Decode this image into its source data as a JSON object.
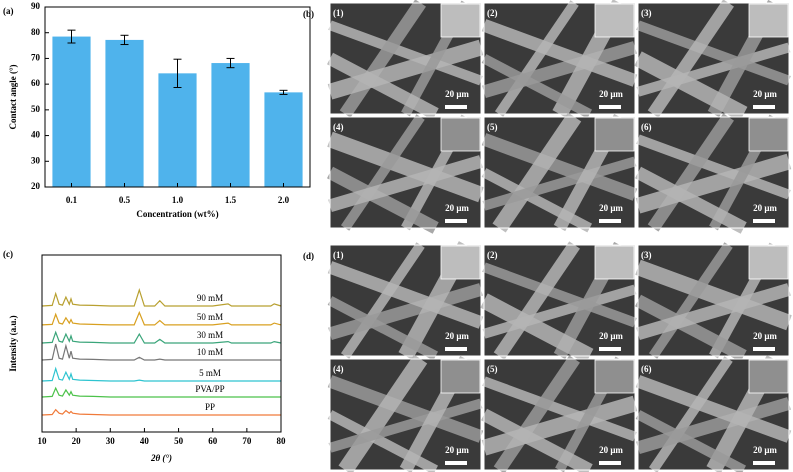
{
  "chart_data": [
    {
      "type": "bar",
      "panel_label": "(a)",
      "xlabel": "Concentration (wt%)",
      "ylabel": "Contact angle (°)",
      "categories": [
        "0.1",
        "0.5",
        "1.0",
        "1.5",
        "2.0"
      ],
      "values": [
        78.5,
        77.2,
        64.2,
        68.2,
        56.8
      ],
      "errors": [
        2.5,
        1.8,
        5.5,
        1.8,
        0.8
      ],
      "color": "#4fb3ec",
      "ylim": [
        20,
        90
      ],
      "yticks": [
        20,
        30,
        40,
        50,
        60,
        70,
        80,
        90
      ]
    },
    {
      "type": "line",
      "panel_label": "(c)",
      "xlabel": "2θ (°)",
      "ylabel": "Intensity (a.u.)",
      "x": [
        10,
        13,
        14,
        15,
        16,
        17,
        18,
        18.5,
        19,
        21,
        25,
        30,
        37,
        38.5,
        40,
        43,
        44.5,
        46,
        60,
        64.5,
        65.5,
        77,
        78,
        80
      ],
      "xlim": [
        10,
        80
      ],
      "xticks": [
        10,
        20,
        30,
        40,
        50,
        60,
        70,
        80
      ],
      "ylim": [
        0,
        100
      ],
      "series": [
        {
          "name": "PP",
          "color": "#f07a3a",
          "values": [
            9.6,
            9.9,
            12.6,
            10.6,
            10.1,
            12.1,
            10.6,
            11.6,
            10.6,
            10.1,
            9.9,
            9.6,
            9.6,
            9.6,
            9.6,
            9.6,
            9.6,
            9.6,
            9.6,
            9.6,
            9.6,
            9.6,
            9.6,
            9.6
          ]
        },
        {
          "name": "PVA/PP",
          "color": "#4cc24a",
          "values": [
            19.8,
            20.1,
            24.8,
            20.8,
            20.3,
            23.8,
            20.8,
            22.8,
            20.8,
            20.3,
            20.1,
            19.8,
            19.8,
            19.8,
            19.8,
            19.8,
            19.8,
            19.8,
            19.8,
            19.8,
            19.8,
            19.8,
            19.8,
            19.8
          ]
        },
        {
          "name": "5 mM",
          "color": "#2ec4d0",
          "values": [
            28.8,
            29.1,
            35.8,
            29.8,
            29.3,
            33.8,
            29.8,
            32.8,
            29.8,
            29.3,
            29.1,
            28.8,
            28.8,
            29.3,
            28.8,
            28.8,
            28.8,
            28.8,
            28.8,
            28.8,
            28.8,
            28.8,
            28.8,
            28.8
          ]
        },
        {
          "name": "10 mM",
          "color": "#777777",
          "values": [
            40.7,
            41,
            49.7,
            41.7,
            41.2,
            48.7,
            41.7,
            45.7,
            41.7,
            41.2,
            41,
            40.7,
            40.7,
            42.2,
            40.7,
            40.7,
            41.2,
            40.7,
            40.7,
            40.7,
            40.7,
            40.7,
            40.7,
            40.7
          ]
        },
        {
          "name": "30 mM",
          "color": "#3aa57a",
          "values": [
            50.3,
            50.6,
            56.3,
            51.3,
            50.8,
            55.3,
            51.3,
            54.3,
            51.3,
            50.8,
            50.6,
            50.3,
            50.3,
            55.3,
            50.3,
            50.3,
            52.3,
            50.3,
            50.3,
            51.1,
            50.3,
            50.3,
            51.1,
            50.3
          ]
        },
        {
          "name": "50 mM",
          "color": "#d8a020",
          "values": [
            60.5,
            60.8,
            66.5,
            61.5,
            61,
            64.5,
            61.5,
            63.5,
            61.5,
            61,
            60.8,
            60.5,
            60.5,
            67.5,
            60.5,
            60.5,
            63,
            60.5,
            60.5,
            61.5,
            60.5,
            60.5,
            61.5,
            60.5
          ]
        },
        {
          "name": "90 mM",
          "color": "#b8a030",
          "values": [
            71.2,
            71.5,
            78.2,
            72.2,
            71.7,
            76.2,
            72.2,
            75.2,
            72.2,
            71.7,
            71.5,
            71.2,
            71.2,
            80.2,
            71.2,
            71.2,
            74.2,
            71.2,
            71.2,
            72.4,
            71.2,
            71.2,
            72.4,
            71.2
          ]
        }
      ]
    }
  ],
  "sem_panels": [
    {
      "label": "(b)",
      "images": [
        {
          "label": "(1)",
          "scale": "20 μm"
        },
        {
          "label": "(2)",
          "scale": "20 μm"
        },
        {
          "label": "(3)",
          "scale": "20 μm"
        },
        {
          "label": "(4)",
          "scale": "20 μm"
        },
        {
          "label": "(5)",
          "scale": "20 μm"
        },
        {
          "label": "(6)",
          "scale": "20 μm"
        }
      ]
    },
    {
      "label": "(d)",
      "images": [
        {
          "label": "(1)",
          "scale": "20 μm"
        },
        {
          "label": "(2)",
          "scale": "20 μm"
        },
        {
          "label": "(3)",
          "scale": "20 μm"
        },
        {
          "label": "(4)",
          "scale": "20 μm"
        },
        {
          "label": "(5)",
          "scale": "20 μm"
        },
        {
          "label": "(6)",
          "scale": "20 μm"
        }
      ]
    }
  ]
}
